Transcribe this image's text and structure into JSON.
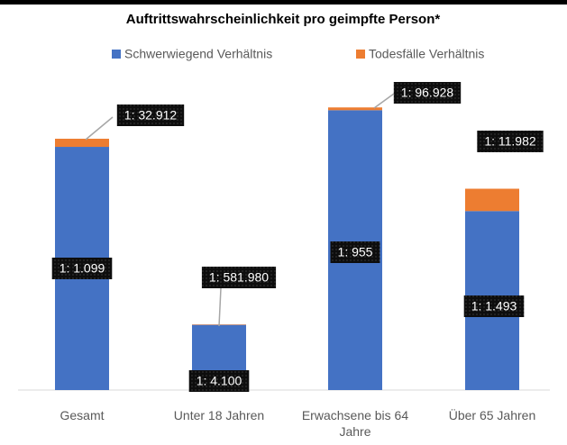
{
  "chart_data": {
    "type": "stacked_bar",
    "title": "Auftrittswahrscheinlichkeit pro geimpfte Person*",
    "categories": [
      "Gesamt",
      "Unter 18 Jahren",
      "Erwachsene bis 64 Jahre",
      "Über 65 Jahren"
    ],
    "series": [
      {
        "name": "Schwerwiegend Verhältnis",
        "color": "#4472c4",
        "values": [
          1099,
          4100,
          955,
          1493
        ],
        "value_labels": [
          "1: 1.099",
          "1: 4.100",
          "1: 955",
          "1: 1.493"
        ]
      },
      {
        "name": "Todesfälle Verhältnis",
        "color": "#ed7d31",
        "values": [
          32912,
          581980,
          96928,
          11982
        ],
        "value_labels": [
          "1: 32.912",
          "1: 581.980",
          "1: 96.928",
          "1: 11.982"
        ]
      }
    ],
    "scale": "reciprocal",
    "legend": "top"
  }
}
